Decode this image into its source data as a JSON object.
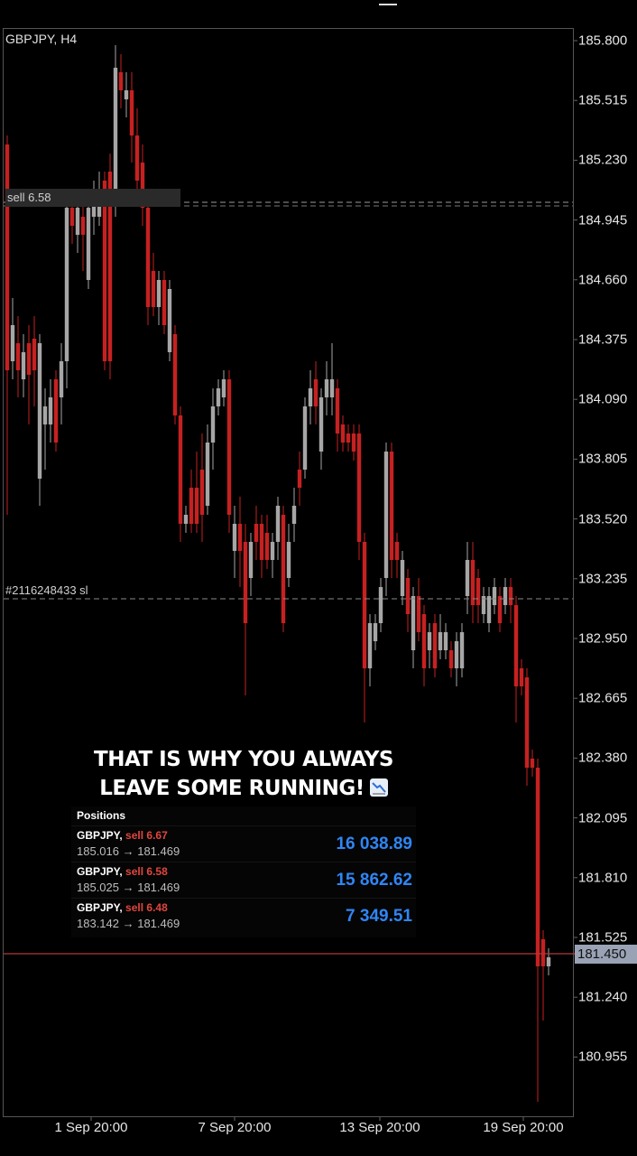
{
  "chart": {
    "symbol": "GBPJPY, H4",
    "price_axis": [
      "185.800",
      "185.515",
      "185.230",
      "184.945",
      "184.660",
      "184.375",
      "184.090",
      "183.805",
      "183.520",
      "183.235",
      "182.950",
      "182.665",
      "182.380",
      "182.095",
      "181.810",
      "181.525",
      "181.240",
      "180.955"
    ],
    "time_axis": [
      "1 Sep 20:00",
      "7 Sep 20:00",
      "13 Sep 20:00",
      "19 Sep 20:00"
    ],
    "current_price": "181.450",
    "order_line_label": "sell 6.58",
    "sl_line_label": "#2116248433 sl",
    "colors": {
      "bull": "#a6a6a6",
      "bear": "#c62121",
      "current_line": "#b33a3a",
      "background": "#000000"
    }
  },
  "overlay": {
    "line1": "THAT IS WHY YOU ALWAYS",
    "line2": "LEAVE SOME RUNNING!",
    "emoji": "chart-decreasing-icon"
  },
  "positions": {
    "header": "Positions",
    "items": [
      {
        "symbol": "GBPJPY,",
        "side": "sell 6.67",
        "prices": "185.016 → 181.469",
        "profit": "16 038.89"
      },
      {
        "symbol": "GBPJPY,",
        "side": "sell 6.58",
        "prices": "185.025 → 181.469",
        "profit": "15 862.62"
      },
      {
        "symbol": "GBPJPY,",
        "side": "sell 6.48",
        "prices": "183.142 → 181.469",
        "profit": "7 349.51"
      }
    ]
  }
}
